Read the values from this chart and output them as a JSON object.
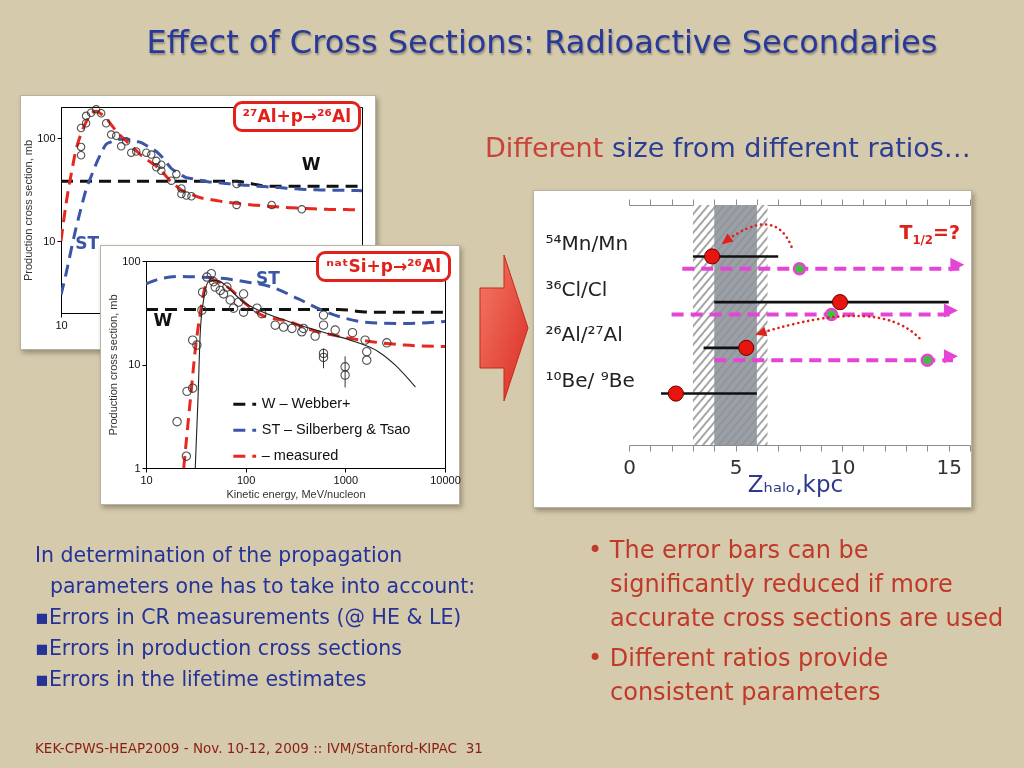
{
  "chart_data": [
    {
      "type": "other",
      "title": "Effect of Cross Sections: Radioactive Secondaries"
    },
    {
      "type": "line",
      "title": "²⁷Al+p→²⁶Al",
      "ylabel": "Production cross section, mb",
      "log": "y",
      "ylim": [
        2,
        200
      ],
      "yticks": [
        10,
        100
      ],
      "annotations": [
        "W",
        "ST"
      ],
      "categories": [
        "10",
        null,
        null,
        null,
        null,
        null,
        null,
        null,
        null,
        null,
        null,
        null,
        null,
        null,
        null,
        null,
        null,
        null,
        null,
        null,
        null,
        null,
        null,
        null,
        null,
        null,
        null,
        null,
        null,
        null,
        null,
        null,
        null,
        null,
        null,
        null,
        null,
        null,
        null,
        null,
        null,
        null,
        null,
        null,
        null,
        null,
        null,
        null,
        null,
        null,
        null,
        null,
        null,
        null,
        null,
        null,
        null,
        null,
        null,
        null,
        null
      ],
      "series": [
        {
          "type": "line",
          "color": "#111111",
          "line_style": "dashed",
          "values": [
            38,
            38,
            38,
            38,
            38,
            38,
            38,
            38,
            38,
            38,
            38,
            38,
            38,
            38,
            38,
            38,
            38,
            38,
            38,
            38,
            38,
            38,
            38,
            38,
            38,
            38,
            38,
            38,
            38,
            38,
            38,
            38,
            38,
            38,
            38,
            38,
            37.6,
            36.8,
            36,
            35.2,
            34.5,
            34,
            34,
            34,
            34,
            34,
            34,
            34,
            34,
            34,
            34,
            34,
            34,
            34,
            34,
            34,
            34,
            34,
            34,
            34,
            34
          ]
        },
        {
          "type": "line",
          "color": "#3b56a6",
          "line_style": "dashed",
          "values": [
            3.0,
            4.8,
            8.1,
            13.4,
            20.9,
            31.5,
            42.3,
            56.1,
            71.3,
            86.9,
            91.9,
            96.2,
            97.3,
            97.3,
            94.8,
            92.5,
            90.2,
            84.7,
            79.3,
            74.0,
            66.5,
            58.0,
            50.6,
            46.9,
            43.7,
            41.2,
            40.4,
            39.5,
            38.7,
            37.9,
            37.3,
            36.9,
            36.5,
            36.1,
            35.8,
            35.3,
            34.9,
            34.7,
            34.4,
            34.1,
            33.9,
            33.6,
            33.4,
            33.1,
            32.9,
            32.6,
            32.4,
            32.1,
            31.8,
            31.6,
            31.4,
            31.4,
            31.3,
            31.3,
            31.2,
            31.1,
            31.1,
            31.0,
            30.9,
            30.9,
            30.8
          ]
        },
        {
          "type": "line",
          "color": "#e8281e",
          "line_style": "dashed",
          "values": [
            10,
            22.8,
            43.7,
            77.2,
            110,
            143,
            171,
            182,
            171,
            156,
            135,
            117,
            104,
            93.6,
            83.9,
            75.3,
            67.8,
            62.4,
            57.6,
            53.2,
            48.0,
            42.3,
            37.3,
            34.1,
            31.2,
            29.7,
            28.4,
            27.1,
            26.2,
            25.7,
            25.2,
            24.7,
            24.2,
            23.8,
            23.5,
            23.2,
            23.0,
            22.7,
            22.4,
            22.2,
            22.0,
            21.8,
            21.6,
            21.5,
            21.3,
            21.1,
            21.0,
            20.9,
            20.8,
            20.7,
            20.6,
            20.5,
            20.3,
            20.3,
            20.2,
            20.2,
            20.2,
            20.2,
            20.1,
            20.1,
            20.1
          ]
        },
        {
          "type": "scatter",
          "color": "#333333",
          "marker": "circle",
          "values": [
            null,
            null,
            null,
            null,
            68,
            139,
            176,
            190,
            174,
            139,
            108,
            105,
            83,
            93,
            72,
            74,
            null,
            72,
            69,
            60,
            55,
            null,
            38.5,
            44.6,
            32.4,
            27.6,
            27.2,
            null,
            null,
            null,
            null,
            null,
            null,
            null,
            null,
            35.7,
            null,
            null,
            null,
            null,
            null,
            null,
            22.4,
            null,
            null,
            null,
            null,
            null,
            20.3,
            null,
            null,
            null,
            null,
            null,
            null,
            null,
            null,
            null,
            null,
            null,
            null
          ]
        },
        {
          "type": "scatter",
          "color": "#333333",
          "marker": "circle",
          "values": [
            null,
            null,
            null,
            null,
            82,
            164,
            null,
            null,
            null,
            null,
            null,
            null,
            null,
            null,
            null,
            null,
            null,
            null,
            null,
            52,
            48,
            null,
            null,
            null,
            28.6,
            null,
            null,
            null,
            null,
            null,
            null,
            null,
            null,
            null,
            null,
            22.4,
            null,
            null,
            null,
            null,
            null,
            null,
            null,
            null,
            null,
            null,
            null,
            null,
            null,
            null,
            null,
            null,
            null,
            null,
            null,
            null,
            null,
            null,
            null,
            null,
            null
          ]
        },
        {
          "type": "scatter",
          "color": "#333333",
          "marker": "circle",
          "values": [
            null,
            null,
            null,
            null,
            125,
            null,
            null,
            null,
            null,
            null,
            null,
            null,
            null,
            null,
            null,
            null,
            null,
            null,
            null,
            null,
            null,
            null,
            null,
            null,
            null,
            null,
            null,
            null,
            null,
            null,
            null,
            null,
            null,
            null,
            null,
            null,
            null,
            null,
            null,
            null,
            null,
            null,
            null,
            null,
            null,
            null,
            null,
            null,
            null,
            null,
            null,
            null,
            null,
            null,
            null,
            null,
            null,
            null,
            null,
            null,
            null
          ]
        }
      ]
    },
    {
      "type": "line",
      "title": "ⁿᵃᵗSi+p→²⁶Al",
      "xlabel": "Kinetic energy, MeV/nucleon",
      "ylabel": "Production cross section, mb",
      "log": "xy",
      "xlim": [
        10,
        10000
      ],
      "ylim": [
        1,
        100
      ],
      "xticks": [
        10,
        100,
        1000,
        10000
      ],
      "yticks": [
        1,
        10,
        100
      ],
      "legend": "bottom",
      "annotations": [
        "W",
        "ST"
      ],
      "series": [
        {
          "type": "line",
          "name": "W – Webber+",
          "color": "#111111",
          "line_style": "dashed",
          "x": [
            10,
            850,
            1800,
            10000
          ],
          "values": [
            34,
            34,
            32,
            32
          ]
        },
        {
          "type": "line",
          "name": "ST – Silberberg & Tsao",
          "color": "#3b56a6",
          "line_style": "dashed",
          "x": [
            10,
            14.5,
            21.2,
            33.7,
            57.8,
            99,
            183,
            339,
            581,
            995,
            1841,
            3972,
            10000
          ],
          "values": [
            60,
            68,
            71,
            70,
            68,
            63,
            56,
            43,
            33.5,
            28,
            25.3,
            24.9,
            26
          ]
        },
        {
          "type": "line",
          "name": "– measured",
          "color": "#e8281e",
          "line_style": "dashed",
          "x": [
            23.9,
            26.4,
            28.5,
            31.2,
            35,
            39.3,
            44.2,
            53.5,
            72.7,
            99,
            145,
            269,
            461,
            853,
            1841,
            3972,
            10000
          ],
          "values": [
            1,
            2.7,
            5.7,
            13.8,
            31,
            56,
            65,
            63,
            52,
            39,
            30,
            26,
            21.5,
            18.8,
            16.6,
            15.4,
            14.9
          ]
        },
        {
          "type": "line",
          "color": "#222222",
          "line_style": "solid",
          "x": [
            31.2,
            33.2,
            35,
            37.8,
            42.5,
            49.5,
            99,
            269,
            581,
            1253,
            2148,
            3155,
            5012
          ],
          "values": [
            1,
            4.5,
            20,
            42,
            63,
            65,
            39,
            26,
            20.7,
            16.6,
            13.3,
            9.9,
            6.1
          ]
        },
        {
          "type": "scatter",
          "color": "#333333",
          "marker": "circle",
          "x": [
            20.5,
            25.4,
            25.8,
            29.4,
            29.4,
            32.4,
            36.4,
            37,
            40.8,
            45.2,
            47.7,
            49.5,
            55.6,
            60,
            64.8,
            70,
            75.6,
            84.9,
            95.3,
            95.3,
            130,
            145,
            198,
            240,
            291,
            366,
            380,
            498,
            604,
            604,
            604,
            604,
            791,
            995,
            995,
            1180,
            1579,
            1640,
            1640,
            2606
          ],
          "values": [
            2.8,
            1.3,
            5.5,
            5.9,
            17.2,
            15.4,
            33.5,
            50,
            70,
            75.5,
            63,
            56,
            52,
            48,
            56,
            42,
            35,
            40,
            48,
            32,
            35,
            31,
            24,
            23,
            22.3,
            20.7,
            22.3,
            18.8,
            30,
            24,
            12.8,
            11.7,
            21.5,
            9.5,
            7.9,
            20.3,
            17.2,
            13.3,
            11,
            16.2
          ],
          "errors": [
            null,
            null,
            null,
            null,
            null,
            null,
            null,
            null,
            null,
            null,
            null,
            null,
            null,
            null,
            null,
            null,
            null,
            null,
            null,
            null,
            null,
            null,
            null,
            null,
            null,
            null,
            null,
            null,
            null,
            null,
            null,
            [
              9.2,
              14.3
            ],
            null,
            [
              6,
              12
            ],
            null,
            null,
            null,
            null,
            null,
            null
          ]
        }
      ]
    },
    {
      "type": "scatter",
      "orientation": "horizontal",
      "title": "Different size from different ratios…",
      "xlabel": "Zₕₐₗₒ,kpc",
      "categories": [
        "⁵⁴Mn/Mn",
        "³⁶Cl/Cl",
        "²⁶Al/²⁷Al",
        "¹⁰Be/ ⁹Be"
      ],
      "xlim": [
        0,
        16
      ],
      "xticks": [
        0,
        {
          "value": 1,
          "label": null
        },
        {
          "value": 2,
          "label": null
        },
        {
          "value": 3,
          "label": null
        },
        {
          "value": 4,
          "label": null
        },
        5,
        {
          "value": 6,
          "label": null
        },
        {
          "value": 7,
          "label": null
        },
        {
          "value": 8,
          "label": null
        },
        {
          "value": 9,
          "label": null
        },
        10,
        {
          "value": 11,
          "label": null
        },
        {
          "value": 12,
          "label": null
        },
        {
          "value": 13,
          "label": null
        },
        {
          "value": 14,
          "label": null
        },
        15,
        {
          "value": 16,
          "label": null
        }
      ],
      "marker": "circle",
      "bands": [
        {
          "axis": "x",
          "from": 3,
          "to": 6.5,
          "color": "#4a4a4a"
        },
        {
          "axis": "x",
          "from": 4,
          "to": 6,
          "color": "#8d929a"
        }
      ],
      "annotations": [
        "T$_{1/2}$=?"
      ],
      "series": [
        {
          "color": "#e8150f",
          "values": [
            3.9,
            9.9,
            5.5,
            2.2
          ],
          "errors": [
            [
              3,
              7
            ],
            [
              4,
              15
            ],
            [
              3.5,
              5.5
            ],
            [
              1.5,
              6
            ]
          ]
        },
        {
          "color": "#e545d6",
          "line_style": "dashed",
          "values": [
            8,
            9.5,
            14,
            null
          ],
          "errors": [
            [
              2.5,
              15.5
            ],
            [
              2,
              15.2
            ],
            [
              4,
              15.2
            ],
            null
          ]
        }
      ]
    },
    {
      "type": "other",
      "annotations": [
        "In determination of the propagation parameters one has to take into account:",
        "▪Errors in CR measurements (@ HE & LE)",
        "▪Errors in production cross sections",
        "▪Errors in the lifetime estimates",
        "• The error bars can be significantly reduced if more accurate cross sections are used",
        "• Different ratios provide consistent parameters",
        "KEK-CPWS-HEAP2009 - Nov. 10-12, 2009 :: IVM/Stanford-KIPAC  31"
      ]
    }
  ]
}
